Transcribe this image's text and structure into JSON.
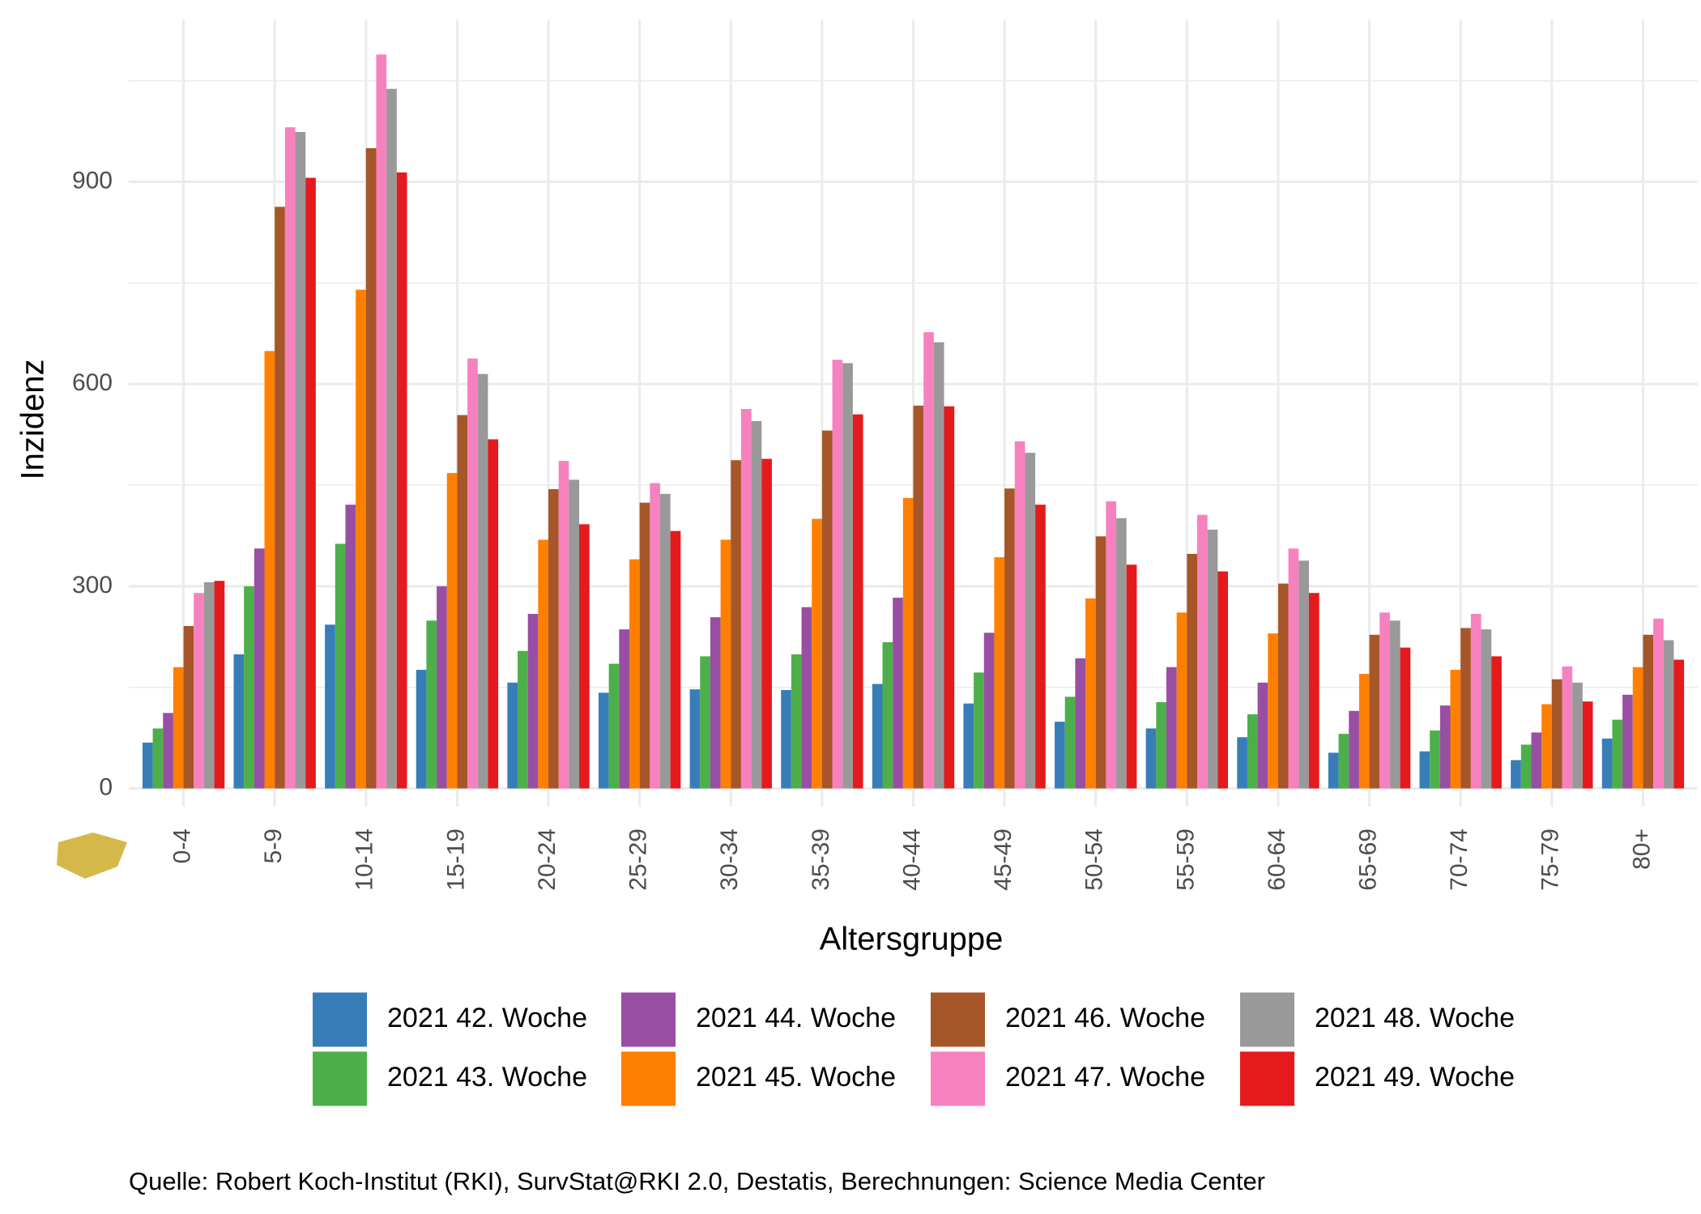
{
  "chart_data": {
    "type": "bar",
    "x_label": "Altersgruppe",
    "y_label": "Inzidenz",
    "caption": "Quelle: Robert Koch-Institut (RKI), SurvStat@RKI 2.0, Destatis, Berechnungen: Science Media Center",
    "categories": [
      "0-4",
      "5-9",
      "10-14",
      "15-19",
      "20-24",
      "25-29",
      "30-34",
      "35-39",
      "40-44",
      "45-49",
      "50-54",
      "55-59",
      "60-64",
      "65-69",
      "70-74",
      "75-79",
      "80+"
    ],
    "ylim": [
      -27,
      1141
    ],
    "yticks": [
      0,
      300,
      600,
      900
    ],
    "yminor": [
      150,
      450,
      750,
      1050
    ],
    "grid": true,
    "series": [
      {
        "name": "2021 42. Woche",
        "color": "#377eb8",
        "values": [
          68,
          199,
          243,
          176,
          157,
          142,
          147,
          146,
          155,
          126,
          99,
          89,
          76,
          53,
          55,
          42,
          74
        ]
      },
      {
        "name": "2021 43. Woche",
        "color": "#4daf4a",
        "values": [
          89,
          300,
          363,
          249,
          204,
          185,
          196,
          199,
          217,
          172,
          136,
          128,
          110,
          81,
          86,
          65,
          102
        ]
      },
      {
        "name": "2021 44. Woche",
        "color": "#984ea3",
        "values": [
          112,
          356,
          421,
          300,
          259,
          236,
          254,
          269,
          283,
          231,
          193,
          180,
          157,
          115,
          123,
          83,
          139
        ]
      },
      {
        "name": "2021 45. Woche",
        "color": "#ff7f00",
        "values": [
          180,
          649,
          740,
          468,
          369,
          340,
          369,
          400,
          431,
          343,
          282,
          261,
          230,
          170,
          176,
          125,
          180
        ]
      },
      {
        "name": "2021 46. Woche",
        "color": "#a65628",
        "values": [
          241,
          863,
          950,
          554,
          444,
          424,
          487,
          531,
          568,
          445,
          374,
          348,
          304,
          228,
          238,
          162,
          228
        ]
      },
      {
        "name": "2021 47. Woche",
        "color": "#f781bf",
        "values": [
          290,
          981,
          1089,
          638,
          486,
          453,
          563,
          636,
          677,
          515,
          426,
          406,
          356,
          261,
          259,
          181,
          252
        ]
      },
      {
        "name": "2021 48. Woche",
        "color": "#999999",
        "values": [
          306,
          974,
          1038,
          615,
          458,
          437,
          545,
          631,
          662,
          498,
          401,
          384,
          338,
          249,
          236,
          157,
          220
        ]
      },
      {
        "name": "2021 49. Woche",
        "color": "#e41a1c",
        "values": [
          308,
          906,
          914,
          518,
          392,
          382,
          489,
          555,
          567,
          421,
          332,
          322,
          290,
          209,
          196,
          129,
          191
        ]
      }
    ]
  }
}
